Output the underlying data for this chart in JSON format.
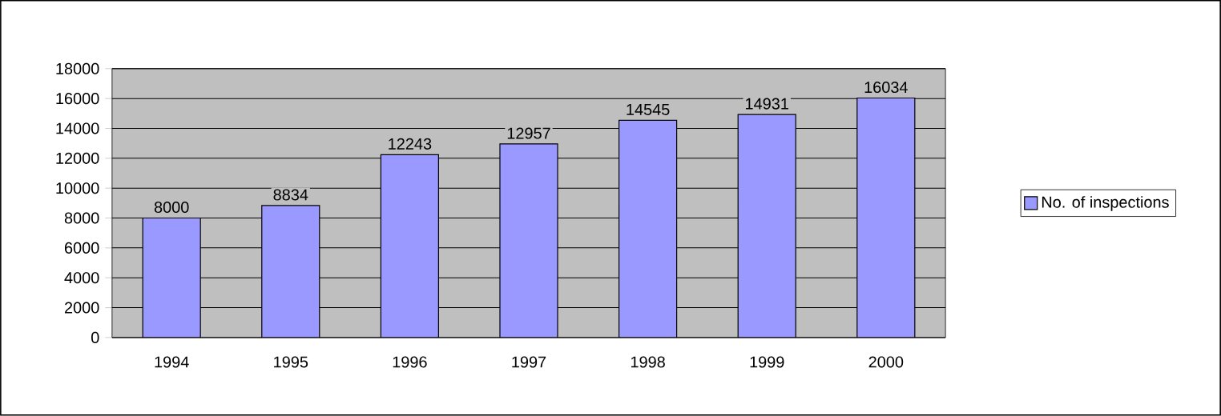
{
  "chart_data": {
    "type": "bar",
    "categories": [
      "1994",
      "1995",
      "1996",
      "1997",
      "1998",
      "1999",
      "2000"
    ],
    "series": [
      {
        "name": "No. of inspections",
        "color": "#9999ff",
        "values": [
          8000,
          8834,
          12243,
          12957,
          14545,
          14931,
          16034
        ]
      }
    ],
    "ylim": [
      0,
      18000
    ],
    "yticks": [
      0,
      2000,
      4000,
      6000,
      8000,
      10000,
      12000,
      14000,
      16000,
      18000
    ],
    "grid": "y",
    "legend": "right",
    "data_labels": true
  }
}
